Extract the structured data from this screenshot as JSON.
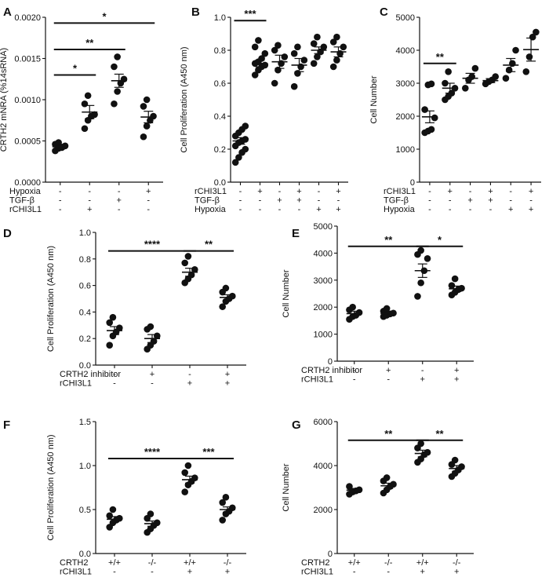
{
  "chart_data": [
    {
      "panel": "A",
      "type": "scatter",
      "ylabel": "CRTH2 mNRA (%14sRNA)",
      "ylim": [
        0,
        0.002
      ],
      "yticks": [
        "0.0000",
        "0.0005",
        "0.0010",
        "0.0015",
        "0.0020"
      ],
      "conditions": [
        {
          "name": "Hypoxia",
          "values": [
            "-",
            "-",
            "-",
            "+"
          ]
        },
        {
          "name": "TGF-β",
          "values": [
            "-",
            "-",
            "+",
            "-"
          ]
        },
        {
          "name": "rCHI3L1",
          "values": [
            "-",
            "+",
            "-",
            "-"
          ]
        }
      ],
      "groups": [
        {
          "mean": 0.00043,
          "sem": 3e-05,
          "points": [
            0.00038,
            0.00041,
            0.00042,
            0.00044,
            0.00046,
            0.00048
          ]
        },
        {
          "mean": 0.00085,
          "sem": 8e-05,
          "points": [
            0.00065,
            0.00075,
            0.0008,
            0.00082,
            0.00095,
            0.00105
          ]
        },
        {
          "mean": 0.00123,
          "sem": 8e-05,
          "points": [
            0.00095,
            0.0011,
            0.0012,
            0.00125,
            0.0014,
            0.00152
          ]
        },
        {
          "mean": 0.00079,
          "sem": 7e-05,
          "points": [
            0.00055,
            0.00068,
            0.00075,
            0.0008,
            0.00092,
            0.001
          ]
        }
      ],
      "significance": [
        {
          "from": 0,
          "to": 1,
          "y": 0.0013,
          "label": "*"
        },
        {
          "from": 0,
          "to": 2,
          "y": 0.00161,
          "label": "**"
        },
        {
          "from": 0,
          "to": 3,
          "y": 0.00193,
          "label": "*"
        }
      ]
    },
    {
      "panel": "B",
      "type": "scatter",
      "ylabel": "Cell Proliferation (A450 nm)",
      "ylim": [
        0,
        1.0
      ],
      "yticks": [
        "0.0",
        "0.2",
        "0.4",
        "0.6",
        "0.8",
        "1.0"
      ],
      "conditions": [
        {
          "name": "rCHI3L1",
          "values": [
            "-",
            "+",
            "-",
            "+",
            "-",
            "+"
          ]
        },
        {
          "name": "TGF-β",
          "values": [
            "-",
            "-",
            "+",
            "+",
            "-",
            "-"
          ]
        },
        {
          "name": "Hypoxia",
          "values": [
            "-",
            "-",
            "-",
            "-",
            "+",
            "+"
          ]
        }
      ],
      "groups": [
        {
          "mean": 0.25,
          "sem": 0.02,
          "points": [
            0.12,
            0.15,
            0.18,
            0.2,
            0.22,
            0.24,
            0.25,
            0.26,
            0.28,
            0.3,
            0.32,
            0.34
          ]
        },
        {
          "mean": 0.72,
          "sem": 0.02,
          "points": [
            0.65,
            0.68,
            0.7,
            0.71,
            0.72,
            0.73,
            0.75,
            0.78,
            0.82,
            0.86
          ]
        },
        {
          "mean": 0.73,
          "sem": 0.04,
          "points": [
            0.6,
            0.68,
            0.72,
            0.76,
            0.8,
            0.83
          ]
        },
        {
          "mean": 0.71,
          "sem": 0.04,
          "points": [
            0.58,
            0.66,
            0.7,
            0.74,
            0.78,
            0.82
          ]
        },
        {
          "mean": 0.8,
          "sem": 0.02,
          "points": [
            0.72,
            0.76,
            0.79,
            0.82,
            0.84,
            0.88
          ]
        },
        {
          "mean": 0.79,
          "sem": 0.03,
          "points": [
            0.7,
            0.74,
            0.78,
            0.82,
            0.85,
            0.88
          ]
        }
      ],
      "significance": [
        {
          "from": 0,
          "to": 1,
          "y": 0.98,
          "label": "***"
        }
      ]
    },
    {
      "panel": "C",
      "type": "scatter",
      "ylabel": "Cell Number",
      "ylim": [
        0,
        5000
      ],
      "yticks": [
        "0",
        "1000",
        "2000",
        "3000",
        "4000",
        "5000"
      ],
      "conditions": [
        {
          "name": "rCHI3L1",
          "values": [
            "-",
            "+",
            "-",
            "+",
            "-",
            "+"
          ]
        },
        {
          "name": "TGF-β",
          "values": [
            "-",
            "-",
            "+",
            "+",
            "-",
            "-"
          ]
        },
        {
          "name": "Hypoxia",
          "values": [
            "-",
            "-",
            "-",
            "-",
            "+",
            "+"
          ]
        }
      ],
      "groups": [
        {
          "mean": 1980,
          "sem": 180,
          "points": [
            1500,
            1550,
            1600,
            1950,
            2200,
            2950,
            2980
          ]
        },
        {
          "mean": 2850,
          "sem": 150,
          "points": [
            2500,
            2600,
            2700,
            2850,
            3000,
            3350
          ]
        },
        {
          "mean": 3150,
          "sem": 150,
          "points": [
            2850,
            3100,
            3200,
            3450
          ]
        },
        {
          "mean": 3080,
          "sem": 60,
          "points": [
            2980,
            3050,
            3100,
            3200
          ]
        },
        {
          "mean": 3550,
          "sem": 200,
          "points": [
            3150,
            3400,
            3600,
            4000
          ]
        },
        {
          "mean": 4020,
          "sem": 350,
          "points": [
            3350,
            3800,
            4400,
            4550
          ]
        }
      ],
      "significance": [
        {
          "from": 0,
          "to": 1,
          "y": 3600,
          "label": "**"
        }
      ]
    },
    {
      "panel": "D",
      "type": "scatter",
      "ylabel": "Cell Proliferation (A450 nm)",
      "ylim": [
        0,
        1.0
      ],
      "yticks": [
        "0.0",
        "0.2",
        "0.4",
        "0.6",
        "0.8",
        "1.0"
      ],
      "conditions": [
        {
          "name": "CRTH2 inhibitor",
          "values": [
            "-",
            "+",
            "-",
            "+"
          ]
        },
        {
          "name": "rCHI3L1",
          "values": [
            "-",
            "-",
            "+",
            "+"
          ]
        }
      ],
      "groups": [
        {
          "mean": 0.26,
          "sem": 0.03,
          "points": [
            0.15,
            0.22,
            0.25,
            0.28,
            0.32,
            0.36
          ]
        },
        {
          "mean": 0.2,
          "sem": 0.03,
          "points": [
            0.12,
            0.15,
            0.18,
            0.22,
            0.27,
            0.29
          ]
        },
        {
          "mean": 0.7,
          "sem": 0.03,
          "points": [
            0.62,
            0.65,
            0.68,
            0.72,
            0.77,
            0.82
          ]
        },
        {
          "mean": 0.51,
          "sem": 0.02,
          "points": [
            0.44,
            0.48,
            0.5,
            0.52,
            0.55,
            0.58
          ]
        }
      ],
      "significance": [
        {
          "from": 0,
          "to": 2,
          "y": 0.86,
          "label": "****"
        },
        {
          "from": 2,
          "to": 3,
          "y": 0.86,
          "label": "**"
        }
      ]
    },
    {
      "panel": "E",
      "type": "scatter",
      "ylabel": "Cell Number",
      "ylim": [
        0,
        5000
      ],
      "yticks": [
        "0",
        "1000",
        "2000",
        "3000",
        "4000",
        "5000"
      ],
      "conditions": [
        {
          "name": "CRTH2 inhibitor",
          "values": [
            "-",
            "+",
            "-",
            "+"
          ]
        },
        {
          "name": "rCHI3L1",
          "values": [
            "-",
            "-",
            "+",
            "+"
          ]
        }
      ],
      "groups": [
        {
          "mean": 1760,
          "sem": 90,
          "points": [
            1550,
            1650,
            1700,
            1800,
            1900,
            2000
          ]
        },
        {
          "mean": 1760,
          "sem": 60,
          "points": [
            1650,
            1700,
            1750,
            1780,
            1850,
            1950
          ]
        },
        {
          "mean": 3350,
          "sem": 250,
          "points": [
            2400,
            2900,
            3350,
            3800,
            3950,
            4100
          ]
        },
        {
          "mean": 2680,
          "sem": 100,
          "points": [
            2450,
            2550,
            2650,
            2700,
            2800,
            3050
          ]
        }
      ],
      "significance": [
        {
          "from": 0,
          "to": 2,
          "y": 4250,
          "label": "**"
        },
        {
          "from": 2,
          "to": 3,
          "y": 4250,
          "label": "*"
        }
      ]
    },
    {
      "panel": "F",
      "type": "scatter",
      "ylabel": "Cell Proliferation (A450 nm)",
      "ylim": [
        0,
        1.5
      ],
      "yticks": [
        "0.0",
        "0.5",
        "1.0",
        "1.5"
      ],
      "conditions": [
        {
          "name": "CRTH2",
          "values": [
            "+/+",
            "-/-",
            "+/+",
            "-/-"
          ]
        },
        {
          "name": "rCHI3L1",
          "values": [
            "-",
            "-",
            "+",
            "+"
          ]
        }
      ],
      "groups": [
        {
          "mean": 0.39,
          "sem": 0.03,
          "points": [
            0.3,
            0.35,
            0.38,
            0.4,
            0.43,
            0.5
          ]
        },
        {
          "mean": 0.34,
          "sem": 0.03,
          "points": [
            0.24,
            0.28,
            0.32,
            0.35,
            0.4,
            0.45
          ]
        },
        {
          "mean": 0.84,
          "sem": 0.04,
          "points": [
            0.7,
            0.78,
            0.82,
            0.86,
            0.92,
            1.0
          ]
        },
        {
          "mean": 0.5,
          "sem": 0.03,
          "points": [
            0.38,
            0.45,
            0.48,
            0.52,
            0.58,
            0.64
          ]
        }
      ],
      "significance": [
        {
          "from": 0,
          "to": 2,
          "y": 1.08,
          "label": "****"
        },
        {
          "from": 2,
          "to": 3,
          "y": 1.08,
          "label": "***"
        }
      ]
    },
    {
      "panel": "G",
      "type": "scatter",
      "ylabel": "Cell Number",
      "ylim": [
        0,
        6000
      ],
      "yticks": [
        "0",
        "2000",
        "4000",
        "6000"
      ],
      "conditions": [
        {
          "name": "CRTH2",
          "values": [
            "+/+",
            "-/-",
            "+/+",
            "-/-"
          ]
        },
        {
          "name": "rCHI3L1",
          "values": [
            "-",
            "-",
            "+",
            "+"
          ]
        }
      ],
      "groups": [
        {
          "mean": 2880,
          "sem": 80,
          "points": [
            2700,
            2800,
            2850,
            2900,
            3050
          ]
        },
        {
          "mean": 3080,
          "sem": 120,
          "points": [
            2750,
            2900,
            3050,
            3150,
            3300,
            3450
          ]
        },
        {
          "mean": 4550,
          "sem": 150,
          "points": [
            4150,
            4300,
            4500,
            4600,
            4800,
            5000
          ]
        },
        {
          "mean": 3870,
          "sem": 130,
          "points": [
            3500,
            3650,
            3800,
            3950,
            4050,
            4250
          ]
        }
      ],
      "significance": [
        {
          "from": 0,
          "to": 2,
          "y": 5150,
          "label": "**"
        },
        {
          "from": 2,
          "to": 3,
          "y": 5150,
          "label": "**"
        }
      ]
    }
  ]
}
